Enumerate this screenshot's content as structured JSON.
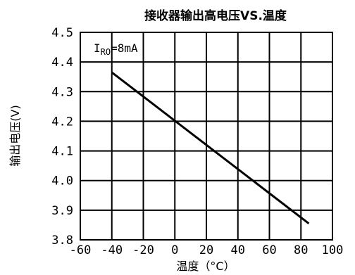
{
  "chart_data": {
    "type": "line",
    "title": "接收器输出高电压VS.温度",
    "xlabel": "温度（°C）",
    "ylabel": "输出电压(V)",
    "xlim": [
      -60,
      100
    ],
    "ylim": [
      3.8,
      4.5
    ],
    "x_ticks": [
      "-60",
      "-40",
      "-20",
      "0",
      "20",
      "40",
      "60",
      "80",
      "100"
    ],
    "y_ticks": [
      "4.5",
      "4.4",
      "4.3",
      "4.2",
      "4.1",
      "4.0",
      "3.9",
      "3.8"
    ],
    "grid": true,
    "annotation": {
      "main": "I",
      "sub": "RO",
      "rest": "=8mA"
    },
    "series": [
      {
        "x": [
          -40,
          85
        ],
        "y": [
          4.365,
          3.855
        ]
      }
    ],
    "colors": {
      "line": "#000000",
      "grid": "#000000"
    }
  }
}
